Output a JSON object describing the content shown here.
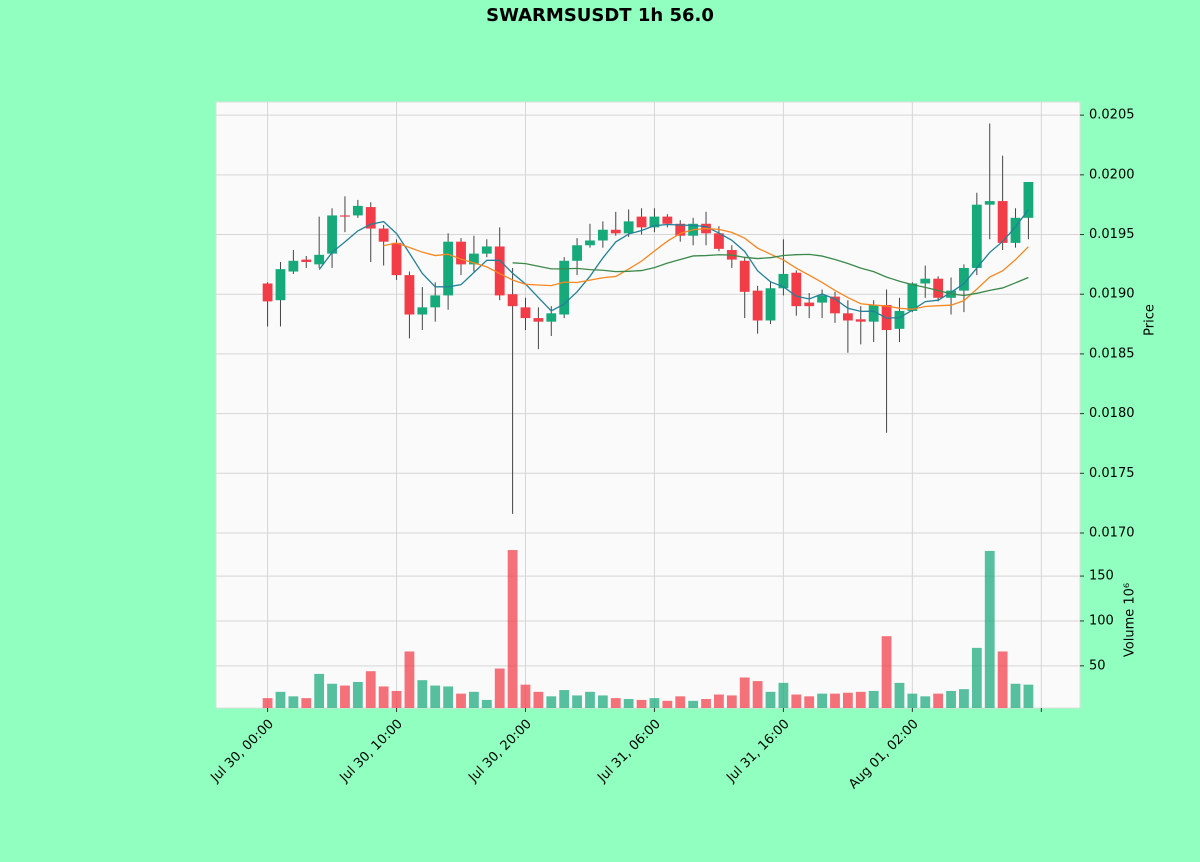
{
  "chart_data": {
    "type": "candlestick",
    "title": "SWARMSUSDT 1h 56.0",
    "ylabel": "Price",
    "volume_label": "Volume  10⁶",
    "categories": [
      "Jul 30, 00:00",
      null,
      null,
      null,
      null,
      null,
      null,
      null,
      null,
      null,
      "Jul 30, 10:00",
      null,
      null,
      null,
      null,
      null,
      null,
      null,
      null,
      null,
      "Jul 30, 20:00",
      null,
      null,
      null,
      null,
      null,
      null,
      null,
      null,
      null,
      "Jul 31, 06:00",
      null,
      null,
      null,
      null,
      null,
      null,
      null,
      null,
      null,
      "Jul 31, 16:00",
      null,
      null,
      null,
      null,
      null,
      null,
      null,
      null,
      null,
      "Aug 01, 02:00",
      null,
      null,
      null,
      null,
      null,
      null,
      null,
      null,
      null
    ],
    "open": [
      0.01909,
      0.01895,
      0.01919,
      0.01929,
      0.01925,
      0.01934,
      0.01966,
      0.01966,
      0.01973,
      0.01955,
      0.01943,
      0.01916,
      0.01883,
      0.01889,
      0.01899,
      0.01944,
      0.01925,
      0.01934,
      0.0194,
      0.019,
      0.01889,
      0.0188,
      0.01877,
      0.01883,
      0.01928,
      0.01941,
      0.01945,
      0.01954,
      0.01951,
      0.01965,
      0.01956,
      0.01965,
      0.01959,
      0.01949,
      0.01959,
      0.01951,
      0.01937,
      0.01928,
      0.01903,
      0.01878,
      0.01905,
      0.01918,
      0.01893,
      0.01893,
      0.01898,
      0.01884,
      0.01879,
      0.01877,
      0.01891,
      0.01871,
      0.01886,
      0.01909,
      0.01913,
      0.01897,
      0.01903,
      0.01922,
      0.01975,
      0.01978,
      0.01943,
      0.01964
    ],
    "high": [
      0.0191,
      0.01927,
      0.01937,
      0.01932,
      0.01965,
      0.01972,
      0.01982,
      0.01979,
      0.01977,
      0.01958,
      0.01946,
      0.01919,
      0.01906,
      0.0191,
      0.01951,
      0.01947,
      0.01949,
      0.01946,
      0.01956,
      0.01922,
      0.01897,
      0.01889,
      0.0189,
      0.01931,
      0.01947,
      0.01959,
      0.01961,
      0.01969,
      0.01971,
      0.01972,
      0.01972,
      0.01967,
      0.01962,
      0.01964,
      0.01969,
      0.01957,
      0.01941,
      0.01931,
      0.01907,
      0.0191,
      0.01946,
      0.0192,
      0.01901,
      0.01904,
      0.01902,
      0.01895,
      0.0189,
      0.01895,
      0.01904,
      0.01897,
      0.0191,
      0.01924,
      0.01915,
      0.01914,
      0.01925,
      0.01985,
      0.02043,
      0.02016,
      0.01972,
      0.01994
    ],
    "low": [
      0.01873,
      0.01873,
      0.01917,
      0.01922,
      0.01922,
      0.01922,
      0.01952,
      0.01964,
      0.01927,
      0.01924,
      0.01912,
      0.01863,
      0.0187,
      0.01877,
      0.01887,
      0.01916,
      0.01919,
      0.01931,
      0.01895,
      0.01716,
      0.0187,
      0.01854,
      0.01865,
      0.0188,
      0.01916,
      0.01939,
      0.01939,
      0.01949,
      0.01948,
      0.0195,
      0.01952,
      0.01956,
      0.01944,
      0.01941,
      0.01941,
      0.01936,
      0.01922,
      0.0188,
      0.01867,
      0.01875,
      0.01899,
      0.01882,
      0.0188,
      0.0188,
      0.01876,
      0.01851,
      0.01858,
      0.0186,
      0.01784,
      0.0186,
      0.01885,
      0.01897,
      0.01894,
      0.01883,
      0.01885,
      0.01916,
      0.01946,
      0.01937,
      0.01939,
      0.01946
    ],
    "close": [
      0.01894,
      0.01921,
      0.01928,
      0.01927,
      0.01933,
      0.01966,
      0.01965,
      0.01974,
      0.01955,
      0.01944,
      0.01916,
      0.01883,
      0.01889,
      0.01899,
      0.01944,
      0.01925,
      0.01934,
      0.0194,
      0.01899,
      0.0189,
      0.0188,
      0.01877,
      0.01884,
      0.01928,
      0.01941,
      0.01945,
      0.01954,
      0.01951,
      0.01961,
      0.01956,
      0.01965,
      0.01959,
      0.01949,
      0.01959,
      0.01951,
      0.01938,
      0.01929,
      0.01902,
      0.01878,
      0.01905,
      0.01917,
      0.0189,
      0.0189,
      0.01899,
      0.01884,
      0.01878,
      0.01877,
      0.01891,
      0.0187,
      0.01886,
      0.01909,
      0.01913,
      0.01897,
      0.01903,
      0.01922,
      0.01975,
      0.01978,
      0.01943,
      0.01964,
      0.01994
    ],
    "volume": [
      14,
      21,
      16,
      14,
      41,
      30,
      28,
      32,
      44,
      27,
      22,
      66,
      34,
      28,
      27,
      19,
      21,
      12,
      47,
      179,
      29,
      21,
      16,
      23,
      17,
      21,
      17,
      14,
      13,
      12,
      14,
      11,
      16,
      11,
      13,
      18,
      17,
      37,
      33,
      21,
      31,
      18,
      16,
      19,
      19,
      20,
      21,
      22,
      83,
      31,
      19,
      16,
      19,
      22,
      24,
      70,
      178,
      66,
      30,
      29
    ],
    "up_color": "#16a97a",
    "down_color": "#f23c47",
    "series": [
      {
        "color": "#23809a",
        "values": [
          null,
          null,
          null,
          null,
          0.019206,
          0.01935,
          0.019438,
          0.01953,
          0.019586,
          0.019608,
          0.019508,
          0.019344,
          0.019174,
          0.019062,
          0.019062,
          0.01908,
          0.019182,
          0.019284,
          0.019284,
          0.019176,
          0.019086,
          0.018972,
          0.01886,
          0.018918,
          0.01902,
          0.01915,
          0.019304,
          0.019438,
          0.019504,
          0.019534,
          0.019574,
          0.019584,
          0.01958,
          0.019576,
          0.019566,
          0.019512,
          0.019452,
          0.019358,
          0.019196,
          0.019104,
          0.019062,
          0.018984,
          0.01896,
          0.019002,
          0.01896,
          0.018882,
          0.018856,
          0.018858,
          0.0188,
          0.018804,
          0.018866,
          0.018938,
          0.01895,
          0.019016,
          0.019088,
          0.01922,
          0.01935,
          0.019442,
          0.019564,
          0.019708
        ]
      },
      {
        "color": "#f7871f",
        "values": [
          null,
          null,
          null,
          null,
          null,
          null,
          null,
          null,
          null,
          0.019407,
          0.019429,
          0.019391,
          0.019352,
          0.019324,
          0.019335,
          0.019294,
          0.019263,
          0.019229,
          0.019173,
          0.019119,
          0.019083,
          0.019077,
          0.019072,
          0.019101,
          0.019098,
          0.019118,
          0.019138,
          0.019149,
          0.019211,
          0.019277,
          0.019362,
          0.019444,
          0.019509,
          0.01954,
          0.01955,
          0.019543,
          0.019518,
          0.019469,
          0.019386,
          0.019335,
          0.019287,
          0.019218,
          0.019159,
          0.019099,
          0.019032,
          0.018972,
          0.01892,
          0.018909,
          0.018901,
          0.018882,
          0.018874,
          0.018897,
          0.018904,
          0.018908,
          0.018946,
          0.019043,
          0.019144,
          0.019196,
          0.01929,
          0.019398
        ]
      },
      {
        "color": "#3b8a4a",
        "values": [
          null,
          null,
          null,
          null,
          null,
          null,
          null,
          null,
          null,
          null,
          null,
          null,
          null,
          null,
          null,
          null,
          null,
          null,
          null,
          0.019263,
          0.019256,
          0.019234,
          0.019212,
          0.0192125,
          0.0192165,
          0.019206,
          0.0192005,
          0.019189,
          0.019192,
          0.019198,
          0.0192225,
          0.0192605,
          0.0192905,
          0.0193205,
          0.019324,
          0.0193305,
          0.019328,
          0.019309,
          0.0192985,
          0.019306,
          0.0193245,
          0.019331,
          0.019334,
          0.0193195,
          0.019291,
          0.0192575,
          0.019219,
          0.019189,
          0.0191435,
          0.0191085,
          0.0190805,
          0.0190575,
          0.0190315,
          0.0190035,
          0.018989,
          0.0190075,
          0.019032,
          0.0190525,
          0.0190955,
          0.01914
        ]
      }
    ],
    "xlim": [
      -4,
      63
    ],
    "xticks": [
      0,
      10,
      20,
      30,
      40,
      50,
      60
    ],
    "ylim": [
      0.017,
      0.02061
    ],
    "yticks": [
      {
        "value": 0.017,
        "label": "0.0170"
      },
      0.0175,
      {
        "value": 0.018,
        "label": "0.0180"
      },
      0.0185,
      {
        "value": 0.019,
        "label": "0.0190"
      },
      0.0195,
      {
        "value": 0.02,
        "label": "0.0200"
      },
      0.0205
    ],
    "volume_ylim": [
      3,
      198
    ],
    "volume_ticks": [
      50,
      100,
      150
    ],
    "grid": true
  }
}
